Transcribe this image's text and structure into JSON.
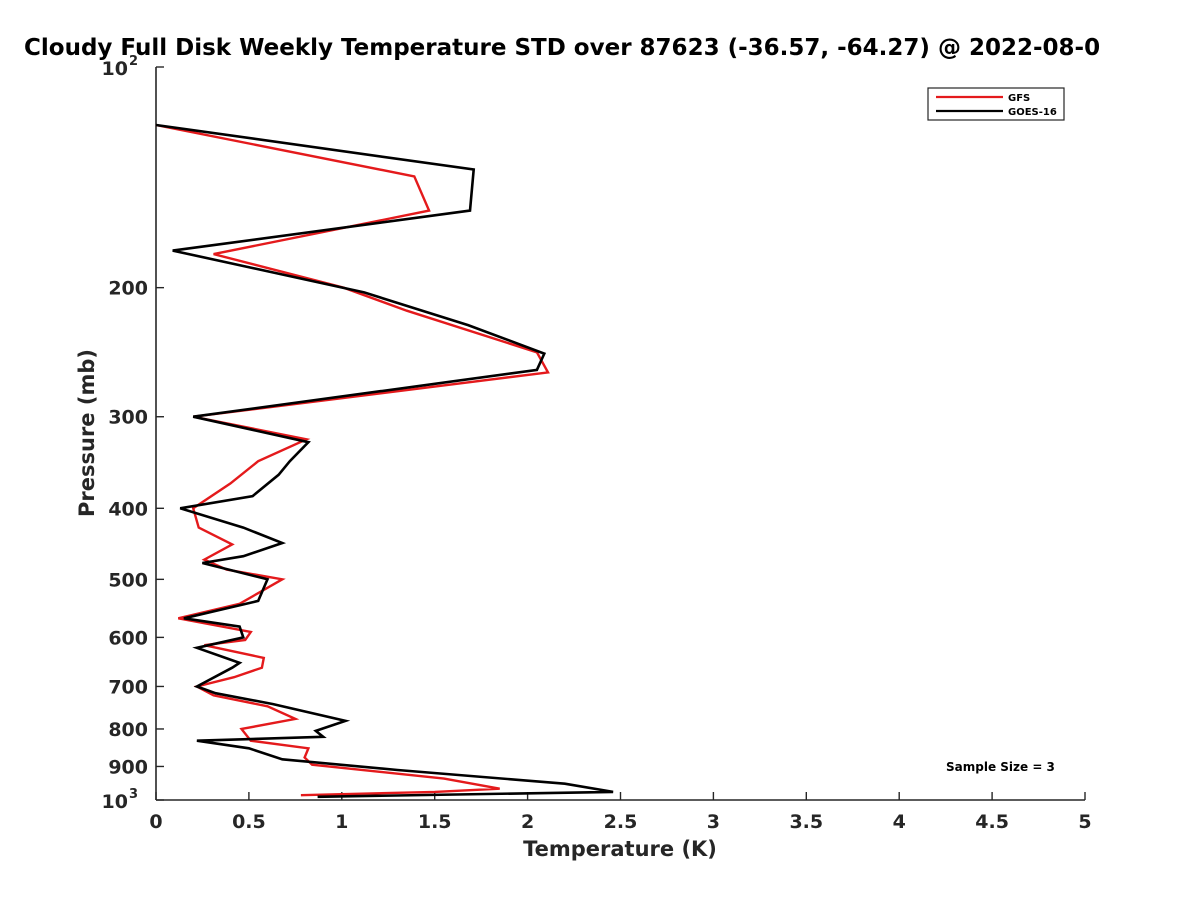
{
  "chart_data": {
    "type": "line",
    "title": "Cloudy Full Disk Weekly Temperature STD over 87623 (-36.57, -64.27) @ 2022-08-0",
    "xlabel": "Temperature (K)",
    "ylabel": "Pressure (mb)",
    "xlim": [
      0,
      5
    ],
    "ylim": [
      100,
      1000
    ],
    "y_scale": "log",
    "y_reversed": true,
    "xticks": [
      "0",
      "0.5",
      "1",
      "1.5",
      "2",
      "2.5",
      "3",
      "3.5",
      "4",
      "4.5",
      "5"
    ],
    "yticks": [
      {
        "value": 100,
        "base": "10",
        "exp": "2"
      },
      {
        "value": 200,
        "label": "200"
      },
      {
        "value": 300,
        "label": "300"
      },
      {
        "value": 400,
        "label": "400"
      },
      {
        "value": 500,
        "label": "500"
      },
      {
        "value": 600,
        "label": "600"
      },
      {
        "value": 700,
        "label": "700"
      },
      {
        "value": 800,
        "label": "800"
      },
      {
        "value": 900,
        "label": "900"
      },
      {
        "value": 1000,
        "base": "10",
        "exp": "3"
      }
    ],
    "legend_position": "top-right",
    "grid": false,
    "annotation": "Sample Size = 3",
    "series": [
      {
        "name": "GFS",
        "color": "#e41a1c",
        "points": [
          [
            0.0,
            120
          ],
          [
            1.39,
            141
          ],
          [
            1.47,
            157
          ],
          [
            0.31,
            180
          ],
          [
            1.01,
            200
          ],
          [
            1.35,
            215
          ],
          [
            2.05,
            245
          ],
          [
            2.11,
            261
          ],
          [
            0.2,
            300
          ],
          [
            0.81,
            322
          ],
          [
            0.55,
            345
          ],
          [
            0.4,
            370
          ],
          [
            0.2,
            400
          ],
          [
            0.23,
            425
          ],
          [
            0.41,
            448
          ],
          [
            0.26,
            470
          ],
          [
            0.38,
            485
          ],
          [
            0.68,
            500
          ],
          [
            0.45,
            540
          ],
          [
            0.12,
            565
          ],
          [
            0.51,
            590
          ],
          [
            0.48,
            605
          ],
          [
            0.26,
            615
          ],
          [
            0.58,
            640
          ],
          [
            0.57,
            660
          ],
          [
            0.42,
            680
          ],
          [
            0.22,
            700
          ],
          [
            0.31,
            720
          ],
          [
            0.6,
            745
          ],
          [
            0.75,
            775
          ],
          [
            0.46,
            800
          ],
          [
            0.51,
            830
          ],
          [
            0.82,
            850
          ],
          [
            0.8,
            875
          ],
          [
            0.84,
            895
          ],
          [
            1.55,
            935
          ],
          [
            1.85,
            965
          ],
          [
            1.5,
            975
          ],
          [
            0.78,
            985
          ]
        ]
      },
      {
        "name": "GOES-16",
        "color": "#000000",
        "points": [
          [
            0.0,
            120
          ],
          [
            1.71,
            138
          ],
          [
            1.69,
            157
          ],
          [
            0.09,
            178
          ],
          [
            1.12,
            203
          ],
          [
            1.68,
            225
          ],
          [
            2.09,
            246
          ],
          [
            2.05,
            259
          ],
          [
            0.2,
            300
          ],
          [
            0.82,
            325
          ],
          [
            0.72,
            345
          ],
          [
            0.66,
            360
          ],
          [
            0.52,
            385
          ],
          [
            0.13,
            400
          ],
          [
            0.47,
            425
          ],
          [
            0.68,
            446
          ],
          [
            0.47,
            465
          ],
          [
            0.25,
            475
          ],
          [
            0.6,
            500
          ],
          [
            0.55,
            535
          ],
          [
            0.15,
            565
          ],
          [
            0.45,
            580
          ],
          [
            0.47,
            600
          ],
          [
            0.22,
            620
          ],
          [
            0.45,
            650
          ],
          [
            0.41,
            660
          ],
          [
            0.22,
            700
          ],
          [
            0.32,
            715
          ],
          [
            0.63,
            740
          ],
          [
            1.02,
            780
          ],
          [
            0.86,
            805
          ],
          [
            0.9,
            820
          ],
          [
            0.22,
            830
          ],
          [
            0.5,
            850
          ],
          [
            0.68,
            880
          ],
          [
            1.3,
            910
          ],
          [
            2.2,
            950
          ],
          [
            2.46,
            975
          ],
          [
            0.87,
            990
          ]
        ]
      }
    ]
  }
}
